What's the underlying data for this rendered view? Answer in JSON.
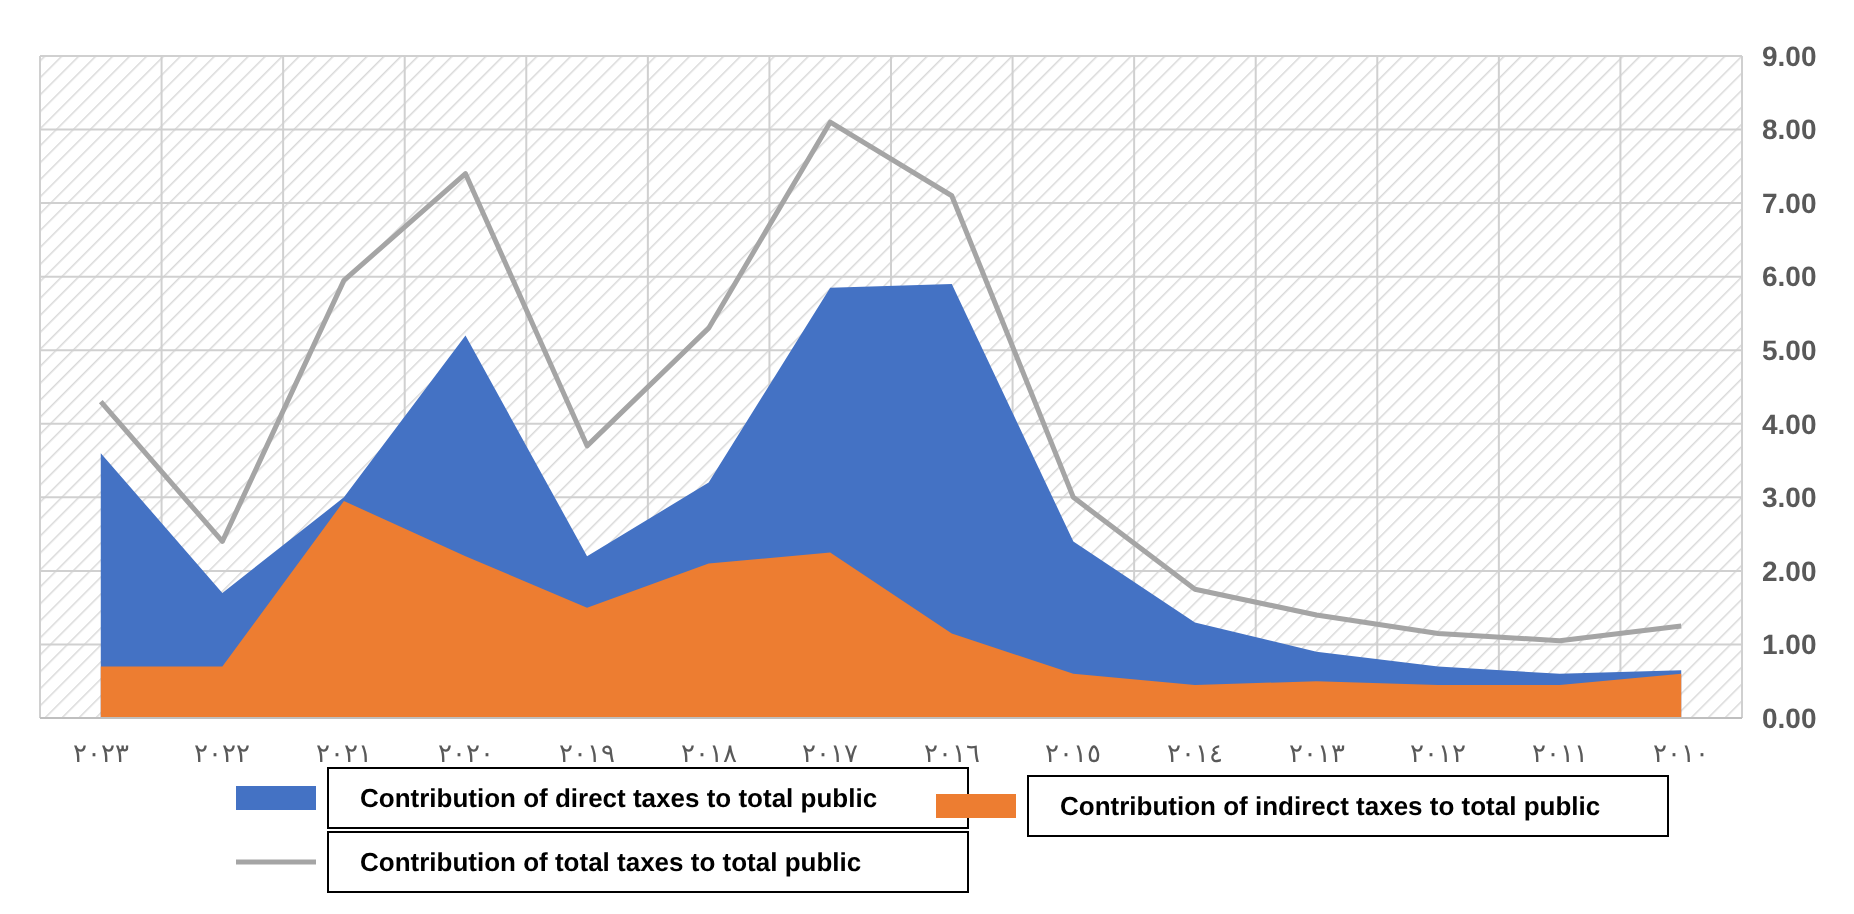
{
  "chart_data": {
    "type": "area",
    "categories": [
      "٢٠٢٣",
      "٢٠٢٢",
      "٢٠٢١",
      "٢٠٢٠",
      "٢٠١٩",
      "٢٠١٨",
      "٢٠١٧",
      "٢٠١٦",
      "٢٠١٥",
      "٢٠١٤",
      "٢٠١٣",
      "٢٠١٢",
      "٢٠١١",
      "٢٠١٠"
    ],
    "series": [
      {
        "name": "Contribution of direct taxes to total public",
        "color": "#4472c4",
        "values": [
          3.6,
          1.7,
          3.0,
          5.2,
          2.2,
          3.2,
          5.85,
          5.9,
          2.4,
          1.3,
          0.9,
          0.7,
          0.6,
          0.65
        ]
      },
      {
        "name": "Contribution of indirect taxes to total public",
        "color": "#ed7d31",
        "values": [
          0.7,
          0.7,
          2.95,
          2.2,
          1.5,
          2.1,
          2.25,
          1.15,
          0.6,
          0.45,
          0.5,
          0.45,
          0.45,
          0.6
        ]
      },
      {
        "name": "Contribution of total taxes to total public",
        "type": "line",
        "color": "#a5a5a5",
        "values": [
          4.3,
          2.4,
          5.95,
          7.4,
          3.7,
          5.3,
          8.1,
          7.1,
          3.0,
          1.75,
          1.4,
          1.15,
          1.05,
          1.25
        ]
      }
    ],
    "ylim": [
      0,
      9
    ],
    "yticks": [
      {
        "value": 0,
        "label": "0.00"
      },
      {
        "value": 1,
        "label": "1.00"
      },
      {
        "value": 2,
        "label": "2.00"
      },
      {
        "value": 3,
        "label": "3.00"
      },
      {
        "value": 4,
        "label": "4.00"
      },
      {
        "value": 5,
        "label": "5.00"
      },
      {
        "value": 6,
        "label": "6.00"
      },
      {
        "value": 7,
        "label": "7.00"
      },
      {
        "value": 8,
        "label": "8.00"
      },
      {
        "value": 9,
        "label": "9.00"
      }
    ],
    "grid": true,
    "legend": "bottom"
  }
}
